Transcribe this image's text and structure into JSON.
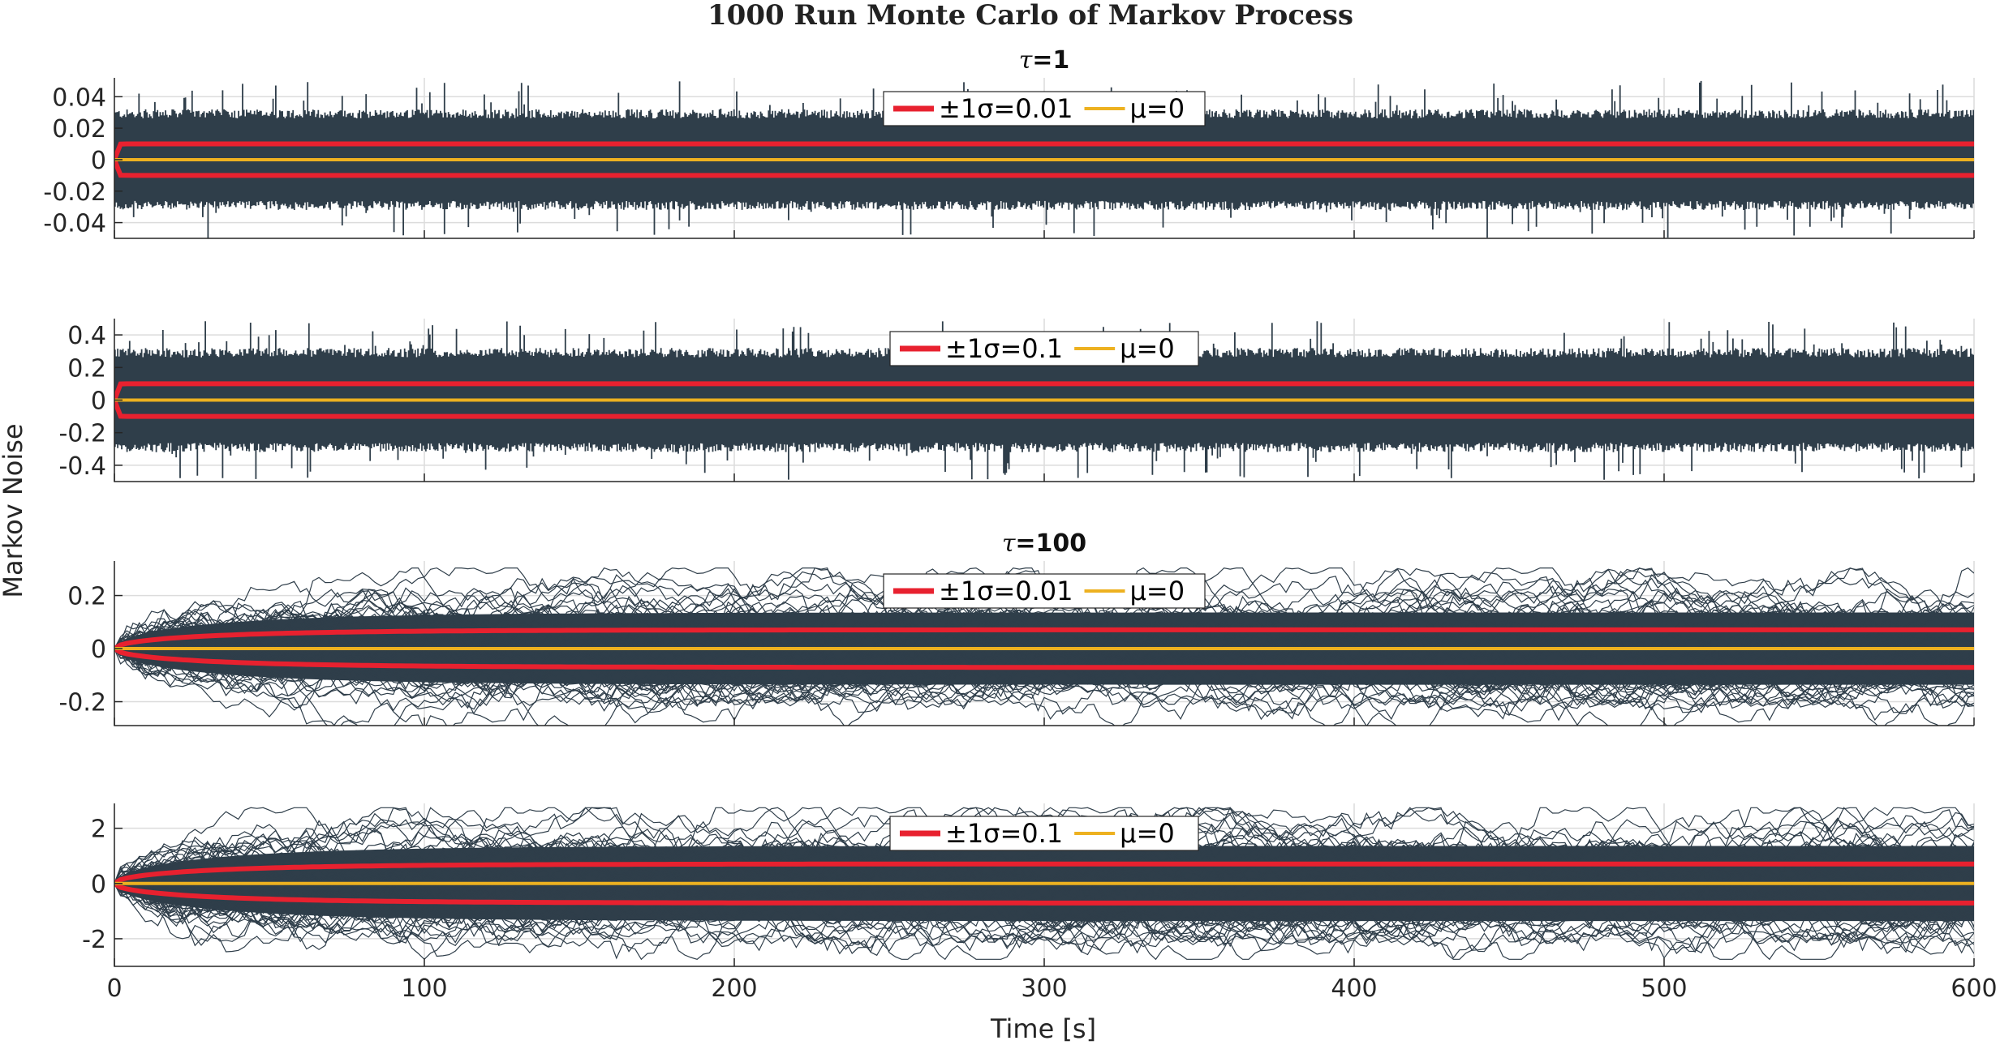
{
  "figure": {
    "title": "1000 Run Monte Carlo of Markov Process",
    "ylabel": "Markov Noise",
    "xlabel": "Time [s]"
  },
  "chart_data": [
    {
      "type": "line",
      "subtitle_prefix": "τ",
      "subtitle_value": "=1",
      "x_range": [
        0,
        600
      ],
      "ylim": [
        -0.05,
        0.052
      ],
      "yticks": [
        0.04,
        0.02,
        0,
        -0.02,
        -0.04
      ],
      "ytick_labels": [
        "0.04",
        "0.02",
        "0",
        "-0.02",
        "-0.04"
      ],
      "xticks": [
        0,
        100,
        200,
        300,
        400,
        500,
        600
      ],
      "grid": true,
      "legend_position": "top-center",
      "series": [
        {
          "name": "±1σ=0.01",
          "color": "#e8212f",
          "sigma_steady": 0.01,
          "tau": 1
        },
        {
          "name": "μ=0",
          "color": "#edb120",
          "mean": 0
        }
      ],
      "noise_cloud": {
        "color": "#2f3e4a",
        "runs": 1000,
        "envelope_typical": 0.032,
        "envelope_peak": 0.05
      }
    },
    {
      "type": "line",
      "subtitle_prefix": "",
      "subtitle_value": "",
      "x_range": [
        0,
        600
      ],
      "ylim": [
        -0.5,
        0.5
      ],
      "yticks": [
        0.4,
        0.2,
        0,
        -0.2,
        -0.4
      ],
      "ytick_labels": [
        "0.4",
        "0.2",
        "0",
        "-0.2",
        "-0.4"
      ],
      "xticks": [
        0,
        100,
        200,
        300,
        400,
        500,
        600
      ],
      "grid": true,
      "legend_position": "top-center",
      "series": [
        {
          "name": "±1σ=0.1",
          "color": "#e8212f",
          "sigma_steady": 0.1,
          "tau": 1
        },
        {
          "name": "μ=0",
          "color": "#edb120",
          "mean": 0
        }
      ],
      "noise_cloud": {
        "color": "#2f3e4a",
        "runs": 1000,
        "envelope_typical": 0.32,
        "envelope_peak": 0.49
      }
    },
    {
      "type": "line",
      "subtitle_prefix": "τ",
      "subtitle_value": "=100",
      "x_range": [
        0,
        600
      ],
      "ylim": [
        -0.29,
        0.33
      ],
      "yticks": [
        0.2,
        0,
        -0.2
      ],
      "ytick_labels": [
        "0.2",
        "0",
        "-0.2"
      ],
      "xticks": [
        0,
        100,
        200,
        300,
        400,
        500,
        600
      ],
      "grid": true,
      "legend_position": "top-center",
      "series": [
        {
          "name": "±1σ=0.01",
          "color": "#e8212f",
          "sigma_steady": 0.0707,
          "tau": 100
        },
        {
          "name": "μ=0",
          "color": "#edb120",
          "mean": 0
        }
      ],
      "noise_cloud": {
        "color": "#2f3e4a",
        "runs": 1000,
        "envelope_typical": 0.2,
        "envelope_peak": 0.31
      }
    },
    {
      "type": "line",
      "subtitle_prefix": "",
      "subtitle_value": "",
      "x_range": [
        0,
        600
      ],
      "ylim": [
        -3,
        2.9
      ],
      "yticks": [
        2,
        0,
        -2
      ],
      "ytick_labels": [
        "2",
        "0",
        "-2"
      ],
      "xticks": [
        0,
        100,
        200,
        300,
        400,
        500,
        600
      ],
      "xtick_labels": [
        "0",
        "100",
        "200",
        "300",
        "400",
        "500",
        "600"
      ],
      "grid": true,
      "legend_position": "top-center",
      "series": [
        {
          "name": "±1σ=0.1",
          "color": "#e8212f",
          "sigma_steady": 0.707,
          "tau": 100
        },
        {
          "name": "μ=0",
          "color": "#edb120",
          "mean": 0
        }
      ],
      "noise_cloud": {
        "color": "#2f3e4a",
        "runs": 1000,
        "envelope_typical": 2.0,
        "envelope_peak": 2.8
      }
    }
  ]
}
